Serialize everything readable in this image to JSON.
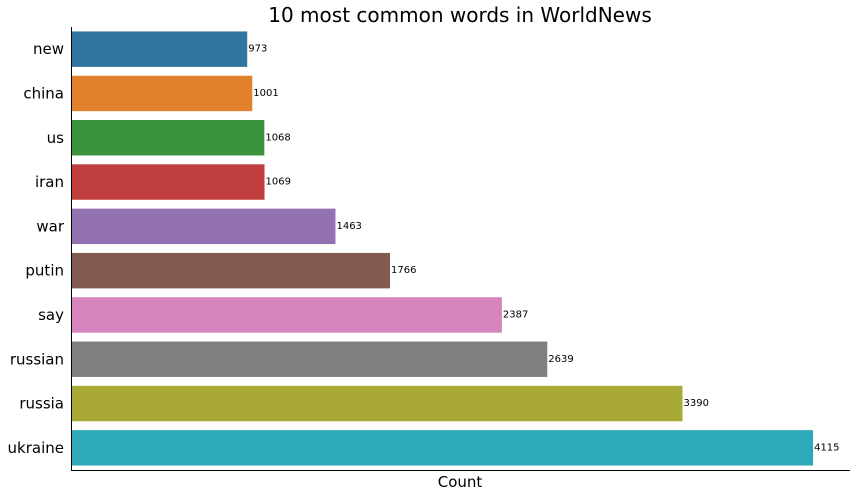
{
  "chart_data": {
    "type": "bar",
    "orientation": "horizontal",
    "title": "10 most common words in WorldNews",
    "xlabel": "Count",
    "ylabel": "",
    "categories": [
      "new",
      "china",
      "us",
      "iran",
      "war",
      "putin",
      "say",
      "russian",
      "russia",
      "ukraine"
    ],
    "values": [
      973,
      1001,
      1068,
      1069,
      1463,
      1766,
      2387,
      2639,
      3390,
      4115
    ],
    "colors": [
      "#3274a1",
      "#e1812c",
      "#3a923a",
      "#c03d3e",
      "#9372b2",
      "#845b53",
      "#d684bd",
      "#7f7f7f",
      "#a9aa35",
      "#2ea9b8"
    ],
    "xlim": [
      0,
      4320
    ],
    "grid": false,
    "x_ticks_visible": false,
    "data_labels": true
  }
}
